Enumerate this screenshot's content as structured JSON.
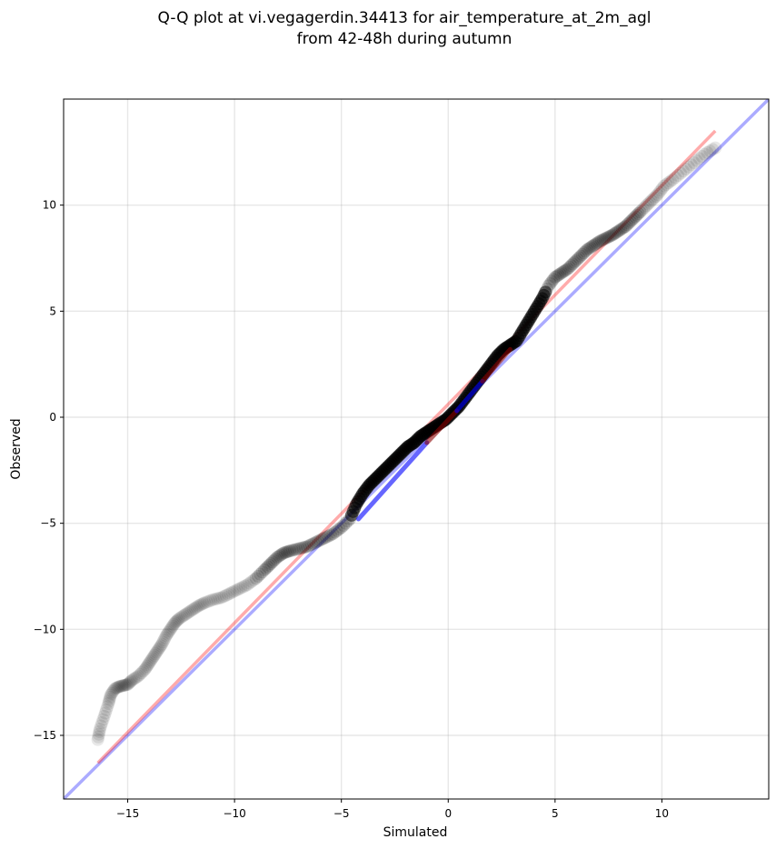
{
  "chart_data": {
    "type": "scatter",
    "title": [
      "Q-Q plot at vi.vegagerdin.34413 for air_temperature_at_2m_agl",
      "from 42-48h during autumn"
    ],
    "xlabel": "Simulated",
    "ylabel": "Observed",
    "xlim": [
      -18,
      15
    ],
    "ylim": [
      -18,
      15
    ],
    "xticks": [
      -15,
      -10,
      -5,
      0,
      5,
      10
    ],
    "yticks": [
      -15,
      -10,
      -5,
      0,
      5,
      10
    ],
    "xtick_labels": [
      "−15",
      "−10",
      "−5",
      "0",
      "5",
      "10"
    ],
    "ytick_labels": [
      "−15",
      "−10",
      "−5",
      "0",
      "5",
      "10"
    ],
    "grid": true,
    "reference_line": {
      "color": "#0000ff",
      "alpha": 0.33,
      "slope": 1,
      "intercept": 0
    },
    "fit_line": {
      "color": "#ff0000",
      "alpha": 0.33,
      "x": [
        -16.4,
        12.5
      ],
      "y": [
        -16.3,
        13.5
      ]
    },
    "tails_color": "#000000",
    "quantile_segments": [
      {
        "color": "#0000ff",
        "x": [
          -4.2,
          -1.0
        ],
        "y": [
          -4.8,
          -1.2
        ]
      },
      {
        "color": "#8b0000",
        "x": [
          -1.0,
          0.4
        ],
        "y": [
          -1.2,
          0.3
        ]
      },
      {
        "color": "#0000ff",
        "x": [
          0.4,
          1.6
        ],
        "y": [
          0.3,
          1.7
        ]
      },
      {
        "color": "#8b0000",
        "x": [
          1.6,
          2.9
        ],
        "y": [
          1.7,
          3.2
        ]
      }
    ],
    "points": {
      "x": [
        -16.4,
        -16.3,
        -16.1,
        -15.9,
        -15.8,
        -15.6,
        -15.4,
        -15.2,
        -15.0,
        -14.8,
        -14.5,
        -14.2,
        -14.0,
        -13.8,
        -13.6,
        -13.4,
        -13.2,
        -13.0,
        -12.8,
        -12.6,
        -12.3,
        -12.0,
        -11.7,
        -11.4,
        -11.0,
        -10.6,
        -10.2,
        -9.8,
        -9.4,
        -9.0,
        -8.6,
        -8.3,
        -8.0,
        -7.7,
        -7.4,
        -7.0,
        -6.6,
        -6.2,
        -5.8,
        -5.4,
        -5.0,
        -4.6,
        -4.3,
        -4.0,
        -3.7,
        -3.4,
        -3.1,
        -2.8,
        -2.5,
        -2.2,
        -1.9,
        -1.6,
        -1.3,
        -1.0,
        -0.7,
        -0.4,
        -0.1,
        0.2,
        0.5,
        0.8,
        1.1,
        1.4,
        1.7,
        2.0,
        2.3,
        2.6,
        2.9,
        3.2,
        3.5,
        3.8,
        4.1,
        4.4,
        4.7,
        5.0,
        5.3,
        5.6,
        5.9,
        6.2,
        6.5,
        6.8,
        7.1,
        7.4,
        7.7,
        8.0,
        8.3,
        8.6,
        8.9,
        9.2,
        9.5,
        9.8,
        10.1,
        10.5,
        11.0,
        11.5,
        12.0,
        12.5
      ],
      "y": [
        -15.2,
        -14.7,
        -14.1,
        -13.5,
        -13.1,
        -12.8,
        -12.7,
        -12.65,
        -12.6,
        -12.4,
        -12.2,
        -11.9,
        -11.6,
        -11.3,
        -11.0,
        -10.7,
        -10.3,
        -10.0,
        -9.7,
        -9.5,
        -9.3,
        -9.1,
        -8.9,
        -8.75,
        -8.6,
        -8.5,
        -8.3,
        -8.1,
        -7.9,
        -7.6,
        -7.2,
        -6.9,
        -6.6,
        -6.4,
        -6.3,
        -6.2,
        -6.1,
        -5.9,
        -5.7,
        -5.5,
        -5.2,
        -4.8,
        -4.1,
        -3.6,
        -3.2,
        -2.9,
        -2.6,
        -2.3,
        -2.0,
        -1.7,
        -1.4,
        -1.2,
        -0.9,
        -0.7,
        -0.5,
        -0.3,
        -0.1,
        0.2,
        0.5,
        0.9,
        1.3,
        1.7,
        2.1,
        2.5,
        2.9,
        3.2,
        3.4,
        3.6,
        4.1,
        4.6,
        5.1,
        5.6,
        6.2,
        6.6,
        6.8,
        7.0,
        7.3,
        7.6,
        7.9,
        8.1,
        8.3,
        8.45,
        8.6,
        8.8,
        9.0,
        9.3,
        9.6,
        9.9,
        10.2,
        10.5,
        10.9,
        11.2,
        11.6,
        12.0,
        12.4,
        12.7
      ]
    }
  }
}
